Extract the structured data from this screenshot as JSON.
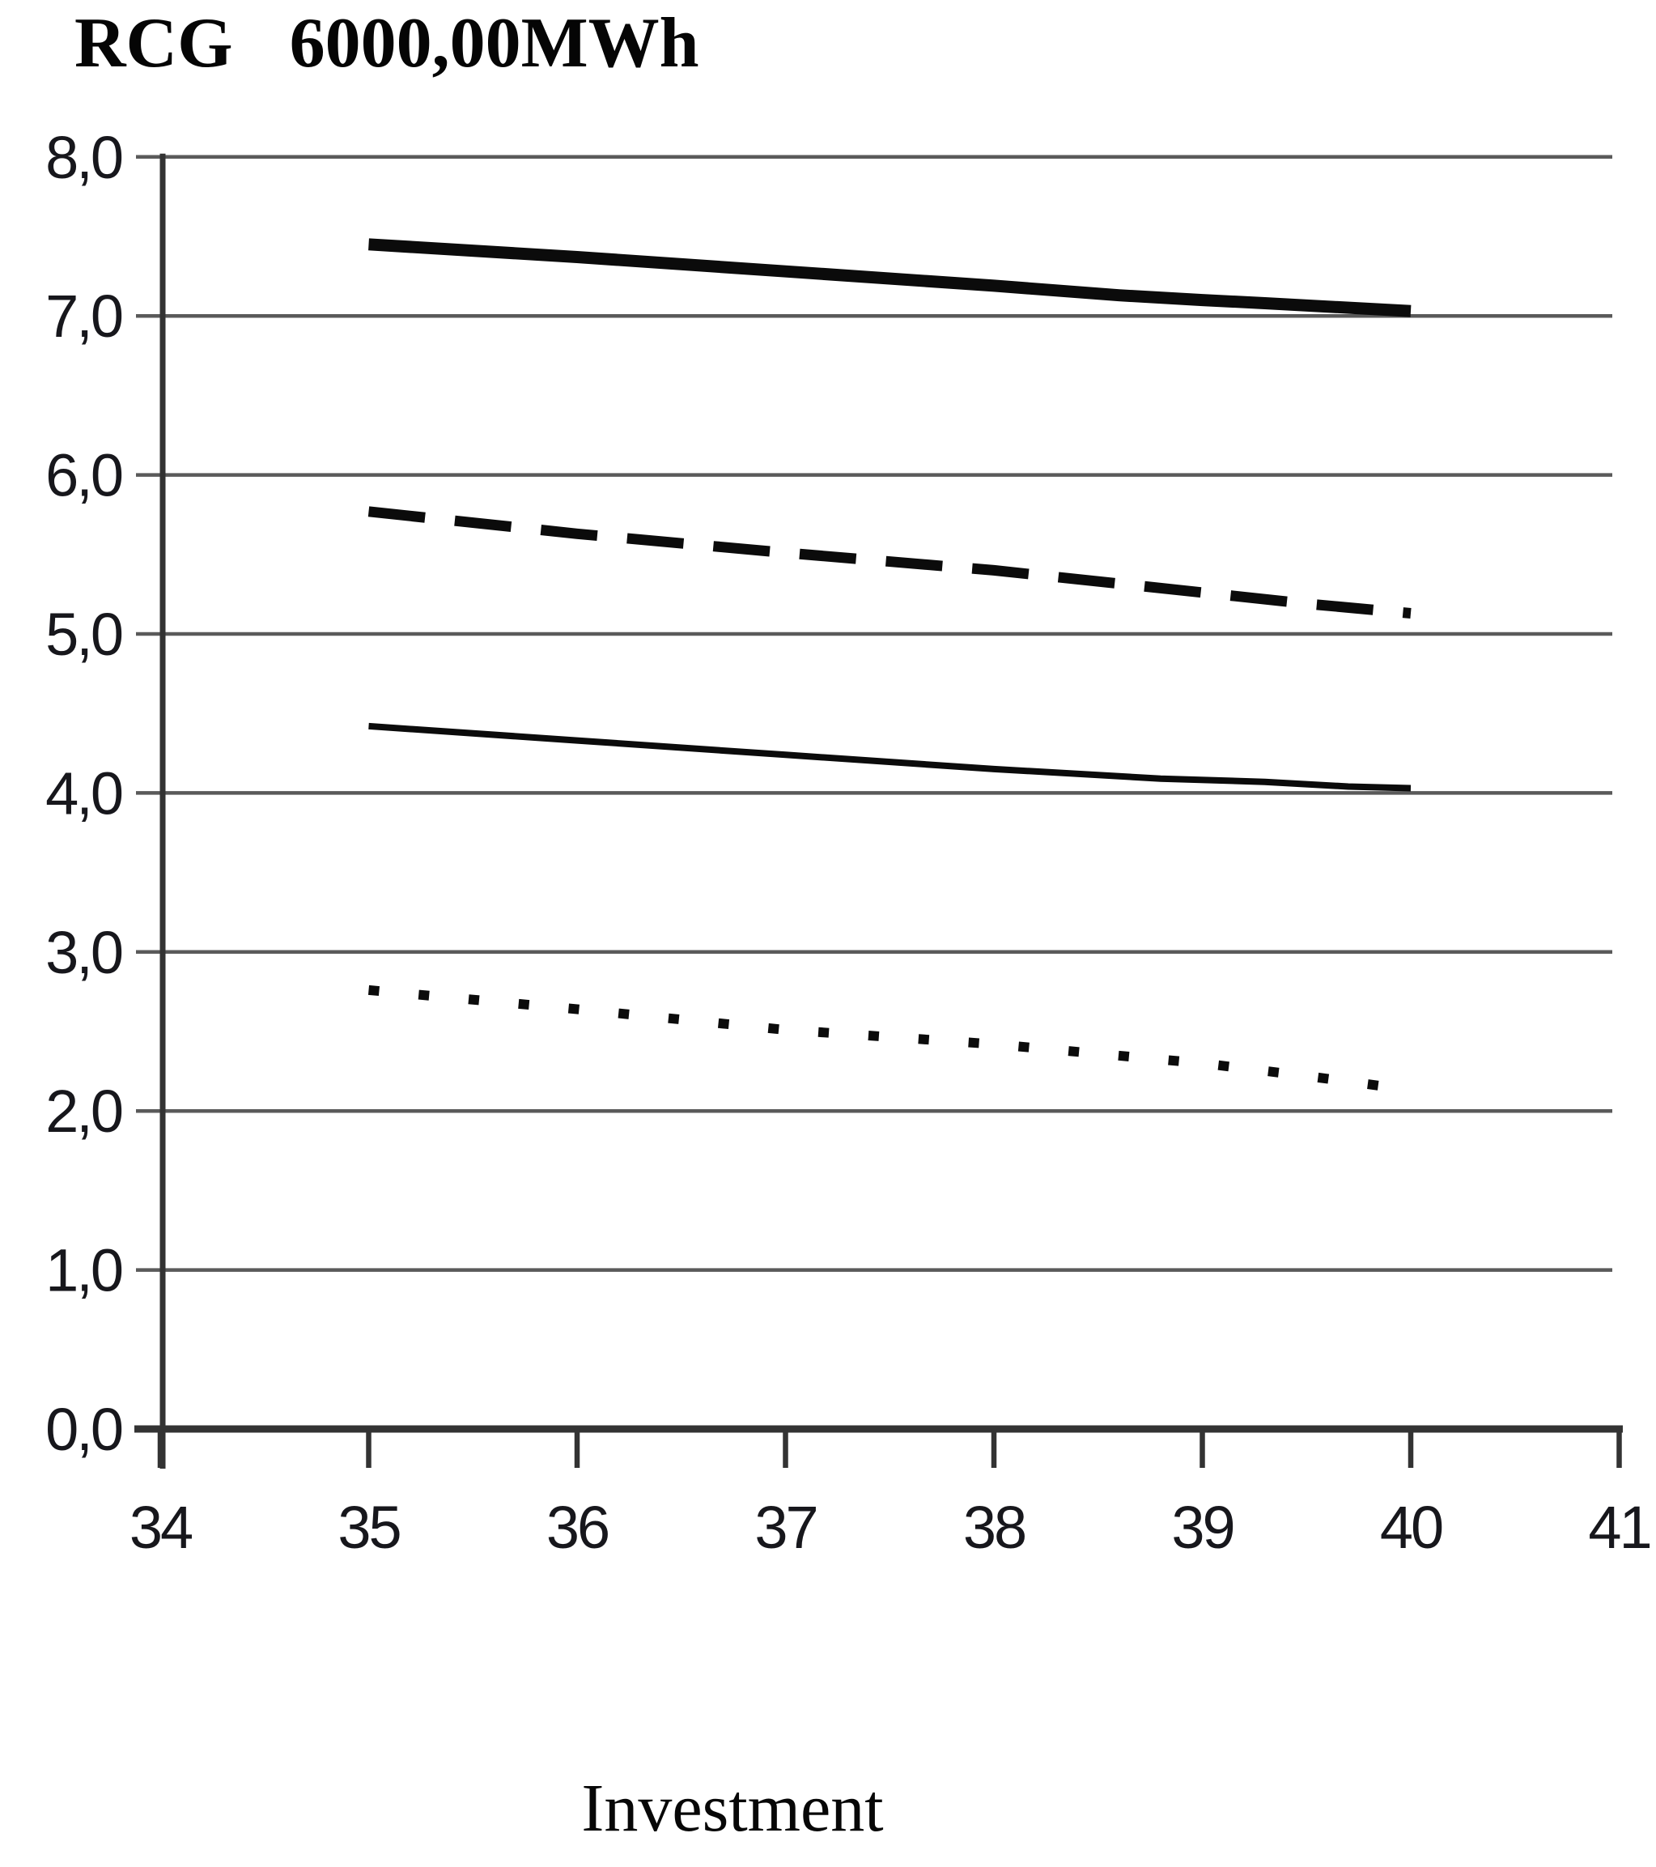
{
  "chart_data": {
    "type": "line",
    "title": "RCG 6000,00MWh",
    "title_parts": [
      "RCG",
      "6000,00MWh"
    ],
    "xlabel": "Investment",
    "ylabel": "",
    "xlim": [
      34,
      41
    ],
    "ylim": [
      0.0,
      8.0
    ],
    "x_ticks": [
      "34",
      "35",
      "36",
      "37",
      "38",
      "39",
      "40",
      "41"
    ],
    "y_ticks": [
      "0,0",
      "1,0",
      "2,0",
      "3,0",
      "4,0",
      "5,0",
      "6,0",
      "7,0",
      "8,0"
    ],
    "grid": "horizontal-gridlines-on",
    "legend": "none",
    "axis_color": "#333333",
    "grid_color": "#5a5a5a",
    "line_color": "#0b0b0b",
    "series": [
      {
        "name": "thick-solid-line",
        "style": "solid",
        "width": 15,
        "points": [
          [
            35,
            7.45
          ],
          [
            36,
            7.37
          ],
          [
            37,
            7.28
          ],
          [
            38,
            7.19
          ],
          [
            38.6,
            7.13
          ],
          [
            39,
            7.1
          ],
          [
            39.3,
            7.08
          ],
          [
            40,
            7.03
          ]
        ]
      },
      {
        "name": "dashed-line",
        "style": "dashed",
        "width": 13,
        "points": [
          [
            35,
            5.77
          ],
          [
            36,
            5.63
          ],
          [
            37,
            5.51
          ],
          [
            38,
            5.4
          ],
          [
            39,
            5.26
          ],
          [
            39.5,
            5.19
          ],
          [
            40,
            5.13
          ]
        ]
      },
      {
        "name": "thin-solid-line",
        "style": "solid",
        "width": 8,
        "points": [
          [
            35,
            4.42
          ],
          [
            36,
            4.33
          ],
          [
            37,
            4.24
          ],
          [
            38,
            4.15
          ],
          [
            38.8,
            4.09
          ],
          [
            39.3,
            4.07
          ],
          [
            39.7,
            4.04
          ],
          [
            40,
            4.03
          ]
        ]
      },
      {
        "name": "dotted-line",
        "style": "dotted",
        "width": 12,
        "points": [
          [
            35,
            2.76
          ],
          [
            36,
            2.64
          ],
          [
            37,
            2.51
          ],
          [
            38,
            2.42
          ],
          [
            39,
            2.3
          ],
          [
            39.5,
            2.22
          ],
          [
            39.9,
            2.15
          ]
        ]
      }
    ]
  }
}
